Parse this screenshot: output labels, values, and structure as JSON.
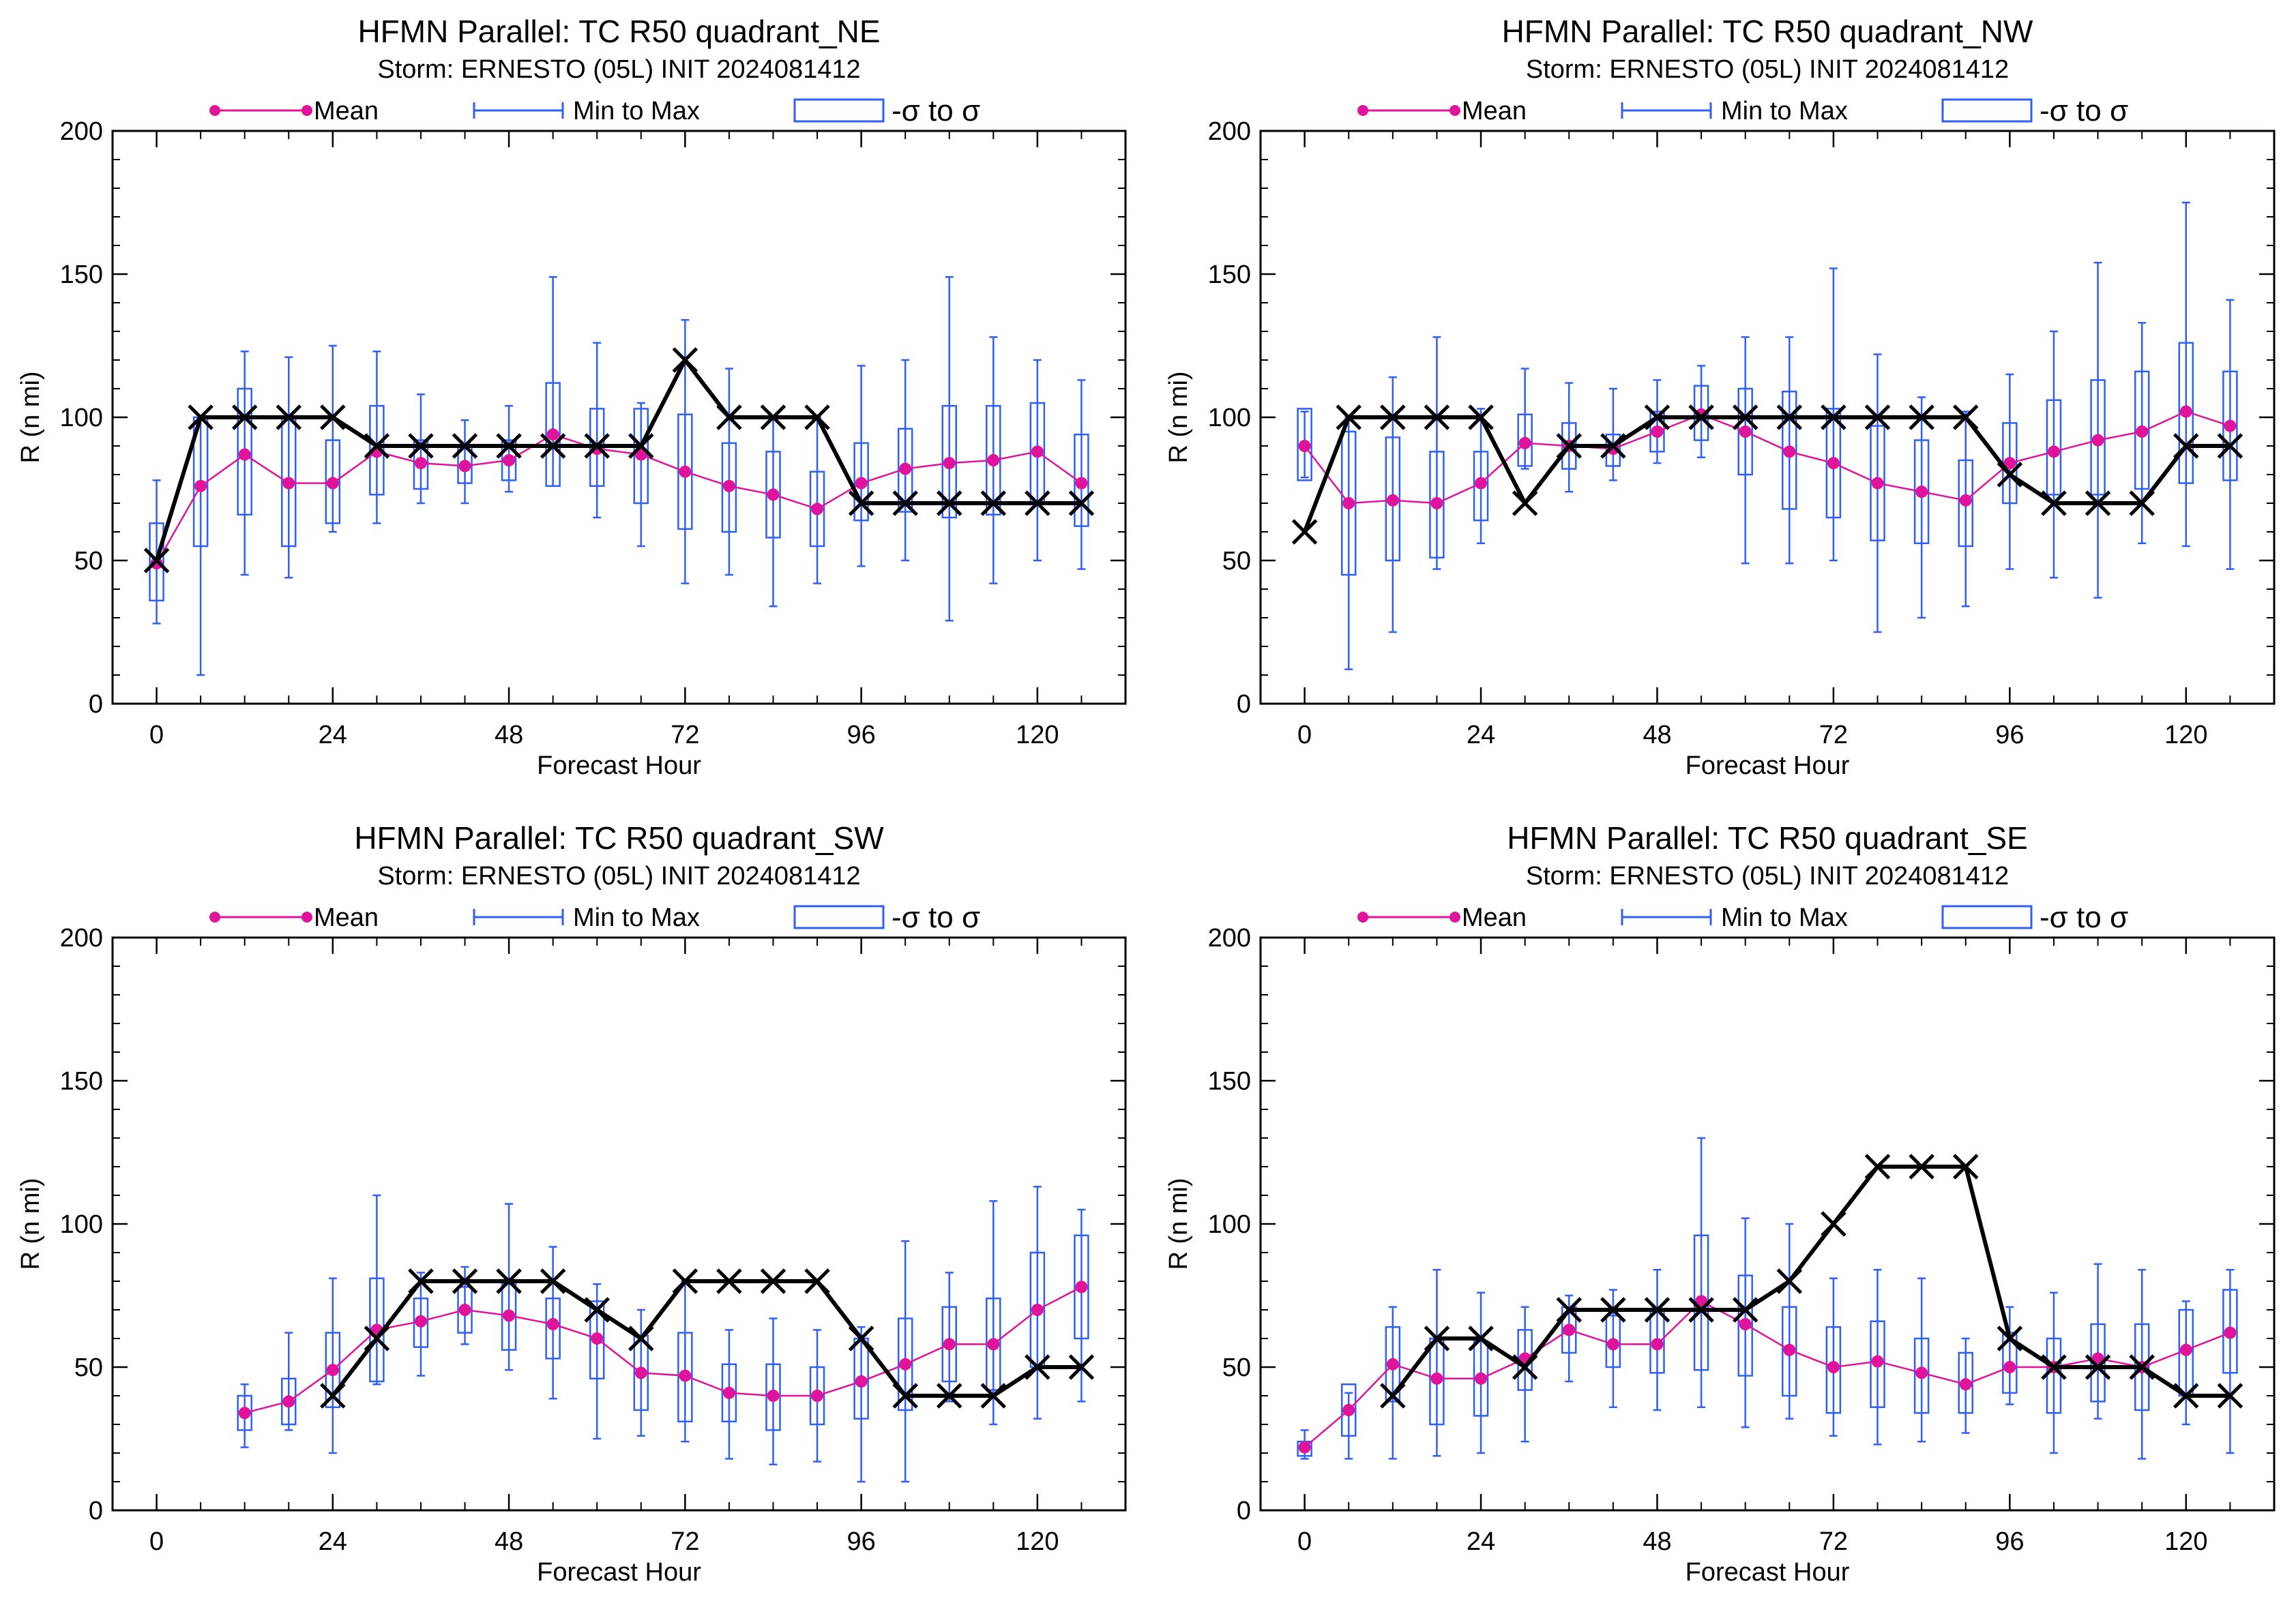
{
  "colors": {
    "mean": "#e0139a",
    "range": "#2f5ff5",
    "obs": "#000000",
    "axis": "#000000"
  },
  "legend": {
    "mean": "Mean",
    "range": "Min to Max",
    "sigma": "-σ to σ"
  },
  "chart_data": [
    {
      "type": "box",
      "title": "HFMN Parallel: TC  R50 quadrant_NE",
      "subtitle": "Storm: ERNESTO (05L) INIT 2024081412",
      "xlabel": "Forecast Hour",
      "ylabel": "R (n mi)",
      "xlim": [
        -6,
        132
      ],
      "ylim": [
        0,
        200
      ],
      "xticks": [
        0,
        24,
        48,
        72,
        96,
        120
      ],
      "yticks": [
        0,
        50,
        100,
        150,
        200
      ],
      "x": [
        0,
        6,
        12,
        18,
        24,
        30,
        36,
        42,
        48,
        54,
        60,
        66,
        72,
        78,
        84,
        90,
        96,
        102,
        108,
        114,
        120,
        126
      ],
      "mean": [
        49,
        76,
        87,
        77,
        77,
        88,
        84,
        83,
        85,
        94,
        89,
        87,
        81,
        76,
        73,
        68,
        77,
        82,
        84,
        85,
        88,
        77
      ],
      "box_lo": [
        36,
        55,
        66,
        55,
        63,
        73,
        75,
        77,
        78,
        76,
        76,
        70,
        61,
        60,
        58,
        55,
        64,
        67,
        65,
        66,
        70,
        62
      ],
      "box_hi": [
        63,
        100,
        110,
        100,
        92,
        104,
        92,
        90,
        92,
        112,
        103,
        103,
        101,
        91,
        88,
        81,
        91,
        96,
        104,
        104,
        105,
        94
      ],
      "min": [
        28,
        10,
        45,
        44,
        60,
        63,
        70,
        70,
        74,
        76,
        65,
        55,
        42,
        45,
        34,
        42,
        48,
        50,
        29,
        42,
        50,
        47
      ],
      "max": [
        78,
        100,
        123,
        121,
        125,
        123,
        108,
        99,
        104,
        149,
        126,
        105,
        134,
        117,
        100,
        100,
        118,
        120,
        149,
        128,
        120,
        113
      ],
      "obs_x": [
        0,
        6,
        12,
        18,
        24,
        30,
        36,
        42,
        48,
        54,
        60,
        66,
        72,
        78,
        84,
        90,
        96,
        102,
        108,
        114,
        120,
        126
      ],
      "obs": [
        50,
        100,
        100,
        100,
        100,
        90,
        90,
        90,
        90,
        90,
        90,
        90,
        120,
        100,
        100,
        100,
        70,
        70,
        70,
        70,
        70,
        70
      ]
    },
    {
      "type": "box",
      "title": "HFMN Parallel: TC  R50 quadrant_NW",
      "subtitle": "Storm: ERNESTO (05L) INIT 2024081412",
      "xlabel": "Forecast Hour",
      "ylabel": "R (n mi)",
      "xlim": [
        -6,
        132
      ],
      "ylim": [
        0,
        200
      ],
      "xticks": [
        0,
        24,
        48,
        72,
        96,
        120
      ],
      "yticks": [
        0,
        50,
        100,
        150,
        200
      ],
      "x": [
        0,
        6,
        12,
        18,
        24,
        30,
        36,
        42,
        48,
        54,
        60,
        66,
        72,
        78,
        84,
        90,
        96,
        102,
        108,
        114,
        120,
        126
      ],
      "mean": [
        90,
        70,
        71,
        70,
        77,
        91,
        90,
        89,
        95,
        101,
        95,
        88,
        84,
        77,
        74,
        71,
        84,
        88,
        92,
        95,
        102,
        97
      ],
      "box_lo": [
        78,
        45,
        50,
        51,
        64,
        83,
        82,
        83,
        88,
        92,
        80,
        68,
        65,
        57,
        56,
        55,
        70,
        73,
        73,
        75,
        77,
        78
      ],
      "box_hi": [
        103,
        95,
        93,
        88,
        88,
        101,
        98,
        94,
        102,
        111,
        110,
        109,
        103,
        97,
        92,
        85,
        98,
        106,
        113,
        116,
        126,
        116
      ],
      "min": [
        79,
        12,
        25,
        47,
        56,
        82,
        74,
        78,
        84,
        86,
        49,
        49,
        50,
        25,
        30,
        34,
        47,
        44,
        37,
        56,
        55,
        47
      ],
      "max": [
        102,
        100,
        114,
        128,
        103,
        117,
        112,
        110,
        113,
        118,
        128,
        128,
        152,
        122,
        107,
        102,
        115,
        130,
        154,
        133,
        175,
        141
      ],
      "obs_x": [
        0,
        6,
        12,
        18,
        24,
        30,
        36,
        42,
        48,
        54,
        60,
        66,
        72,
        78,
        84,
        90,
        96,
        102,
        108,
        114,
        120,
        126
      ],
      "obs": [
        60,
        100,
        100,
        100,
        100,
        70,
        90,
        90,
        100,
        100,
        100,
        100,
        100,
        100,
        100,
        100,
        80,
        70,
        70,
        70,
        90,
        90
      ]
    },
    {
      "type": "box",
      "title": "HFMN Parallel: TC  R50 quadrant_SW",
      "subtitle": "Storm: ERNESTO (05L) INIT 2024081412",
      "xlabel": "Forecast Hour",
      "ylabel": "R (n mi)",
      "xlim": [
        -6,
        132
      ],
      "ylim": [
        0,
        200
      ],
      "xticks": [
        0,
        24,
        48,
        72,
        96,
        120
      ],
      "yticks": [
        0,
        50,
        100,
        150,
        200
      ],
      "x": [
        12,
        18,
        24,
        30,
        36,
        42,
        48,
        54,
        60,
        66,
        72,
        78,
        84,
        90,
        96,
        102,
        108,
        114,
        120,
        126
      ],
      "mean": [
        34,
        38,
        49,
        63,
        66,
        70,
        68,
        65,
        60,
        48,
        47,
        41,
        40,
        40,
        45,
        51,
        58,
        58,
        70,
        78
      ],
      "box_lo": [
        28,
        30,
        36,
        45,
        57,
        62,
        56,
        53,
        46,
        35,
        31,
        31,
        28,
        30,
        32,
        35,
        45,
        42,
        50,
        60
      ],
      "box_hi": [
        40,
        46,
        62,
        81,
        74,
        78,
        79,
        74,
        73,
        61,
        62,
        51,
        51,
        50,
        60,
        67,
        71,
        74,
        90,
        96
      ],
      "min": [
        22,
        28,
        20,
        44,
        47,
        58,
        49,
        39,
        25,
        26,
        24,
        18,
        16,
        17,
        10,
        10,
        38,
        30,
        32,
        38
      ],
      "max": [
        44,
        62,
        81,
        110,
        83,
        85,
        107,
        92,
        79,
        70,
        80,
        63,
        67,
        63,
        64,
        94,
        83,
        108,
        113,
        105
      ],
      "obs_x": [
        24,
        30,
        36,
        42,
        48,
        54,
        60,
        66,
        72,
        78,
        84,
        90,
        96,
        102,
        108,
        114,
        120,
        126
      ],
      "obs": [
        40,
        60,
        80,
        80,
        80,
        80,
        70,
        60,
        80,
        80,
        80,
        80,
        60,
        40,
        40,
        40,
        50,
        50
      ]
    },
    {
      "type": "box",
      "title": "HFMN Parallel: TC  R50 quadrant_SE",
      "subtitle": "Storm: ERNESTO (05L) INIT 2024081412",
      "xlabel": "Forecast Hour",
      "ylabel": "R (n mi)",
      "xlim": [
        -6,
        132
      ],
      "ylim": [
        0,
        200
      ],
      "xticks": [
        0,
        24,
        48,
        72,
        96,
        120
      ],
      "yticks": [
        0,
        50,
        100,
        150,
        200
      ],
      "x": [
        0,
        6,
        12,
        18,
        24,
        30,
        36,
        42,
        48,
        54,
        60,
        66,
        72,
        78,
        84,
        90,
        96,
        102,
        108,
        114,
        120,
        126
      ],
      "mean": [
        22,
        35,
        51,
        46,
        46,
        53,
        63,
        58,
        58,
        73,
        65,
        56,
        50,
        52,
        48,
        44,
        50,
        50,
        53,
        50,
        56,
        62
      ],
      "box_lo": [
        19,
        26,
        38,
        30,
        33,
        42,
        55,
        50,
        48,
        49,
        47,
        40,
        34,
        36,
        34,
        34,
        41,
        34,
        38,
        35,
        40,
        48
      ],
      "box_hi": [
        24,
        44,
        64,
        60,
        59,
        63,
        71,
        68,
        70,
        96,
        82,
        71,
        64,
        66,
        60,
        55,
        62,
        60,
        65,
        65,
        70,
        77
      ],
      "min": [
        18,
        18,
        18,
        19,
        20,
        24,
        45,
        36,
        35,
        36,
        29,
        32,
        26,
        23,
        24,
        27,
        37,
        20,
        32,
        18,
        30,
        20
      ],
      "max": [
        28,
        41,
        71,
        84,
        76,
        71,
        75,
        77,
        84,
        130,
        102,
        100,
        81,
        84,
        81,
        60,
        71,
        76,
        86,
        84,
        73,
        84
      ],
      "obs_x": [
        12,
        18,
        24,
        30,
        36,
        42,
        48,
        54,
        60,
        66,
        72,
        78,
        84,
        90,
        96,
        102,
        108,
        114,
        120,
        126
      ],
      "obs": [
        40,
        60,
        60,
        50,
        70,
        70,
        70,
        70,
        70,
        80,
        100,
        120,
        120,
        120,
        60,
        50,
        50,
        50,
        40,
        40
      ]
    }
  ]
}
